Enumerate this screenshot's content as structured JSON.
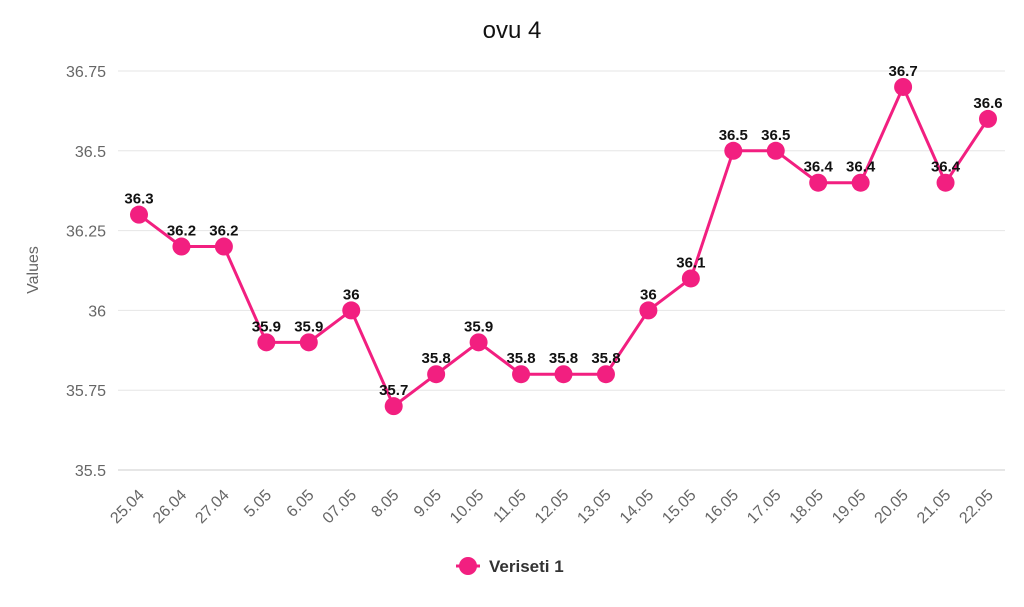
{
  "chart_data": {
    "type": "line",
    "title": "ovu 4",
    "xlabel": "",
    "ylabel": "Values",
    "ylim": [
      35.5,
      36.75
    ],
    "yticks": [
      35.5,
      35.75,
      36,
      36.25,
      36.5,
      36.75
    ],
    "ytick_labels": [
      "35.5",
      "35.75",
      "36",
      "36.25",
      "36.5",
      "36.75"
    ],
    "grid": true,
    "legend_position": "bottom",
    "categories": [
      "25.04",
      "26.04",
      "27.04",
      "5.05",
      "6.05",
      "07.05",
      "8.05",
      "9.05",
      "10.05",
      "11.05",
      "12.05",
      "13.05",
      "14.05",
      "15.05",
      "16.05",
      "17.05",
      "18.05",
      "19.05",
      "20.05",
      "21.05",
      "22.05"
    ],
    "series": [
      {
        "name": "Veriseti 1",
        "color": "#f21f80",
        "values": [
          36.3,
          36.2,
          36.2,
          35.9,
          35.9,
          36,
          35.7,
          35.8,
          35.9,
          35.8,
          35.8,
          35.8,
          36,
          36.1,
          36.5,
          36.5,
          36.4,
          36.4,
          36.7,
          36.4,
          36.6
        ]
      }
    ]
  }
}
